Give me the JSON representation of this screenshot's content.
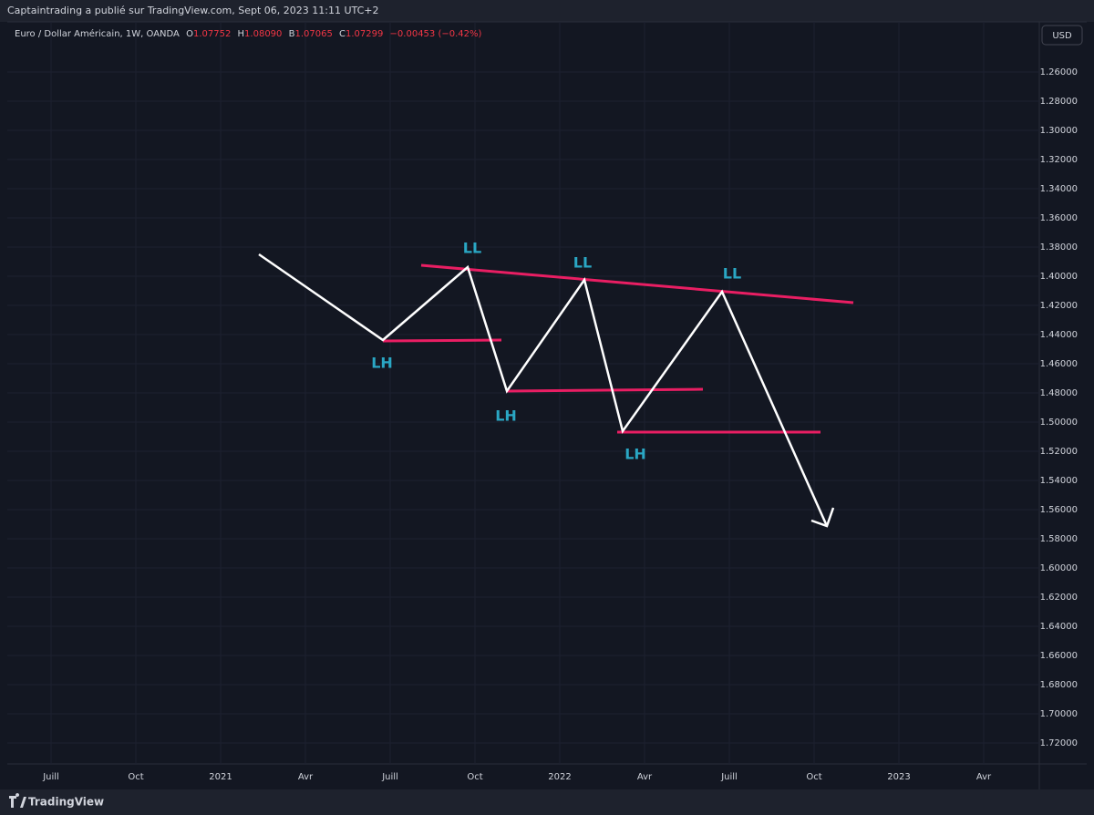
{
  "header": {
    "publisher": "Captaintrading a publié sur TradingView.com, Sept 06, 2023 11:11 UTC+2"
  },
  "legend": {
    "symbol": "Euro / Dollar Américain, 1W, OANDA",
    "open_label": "O",
    "open": "1.07752",
    "high_label": "H",
    "high": "1.08090",
    "low_label": "B",
    "low": "1.07065",
    "close_label": "C",
    "close": "1.07299",
    "change": "−0.00453 (−0.42%)"
  },
  "currency": "USD",
  "price_axis": [
    "1.26000",
    "1.28000",
    "1.30000",
    "1.32000",
    "1.34000",
    "1.36000",
    "1.38000",
    "1.40000",
    "1.42000",
    "1.44000",
    "1.46000",
    "1.48000",
    "1.50000",
    "1.52000",
    "1.54000",
    "1.56000",
    "1.58000",
    "1.60000",
    "1.62000",
    "1.64000",
    "1.66000",
    "1.68000",
    "1.70000",
    "1.72000"
  ],
  "time_axis": [
    "Juill",
    "Oct",
    "2021",
    "Avr",
    "Juill",
    "Oct",
    "2022",
    "Avr",
    "Juill",
    "Oct",
    "2023",
    "Avr"
  ],
  "annotations": [
    {
      "label": "LL"
    },
    {
      "label": "LL"
    },
    {
      "label": "LL"
    },
    {
      "label": "LH"
    },
    {
      "label": "LH"
    },
    {
      "label": "LH"
    }
  ],
  "footer": {
    "brand": "TradingView"
  }
}
